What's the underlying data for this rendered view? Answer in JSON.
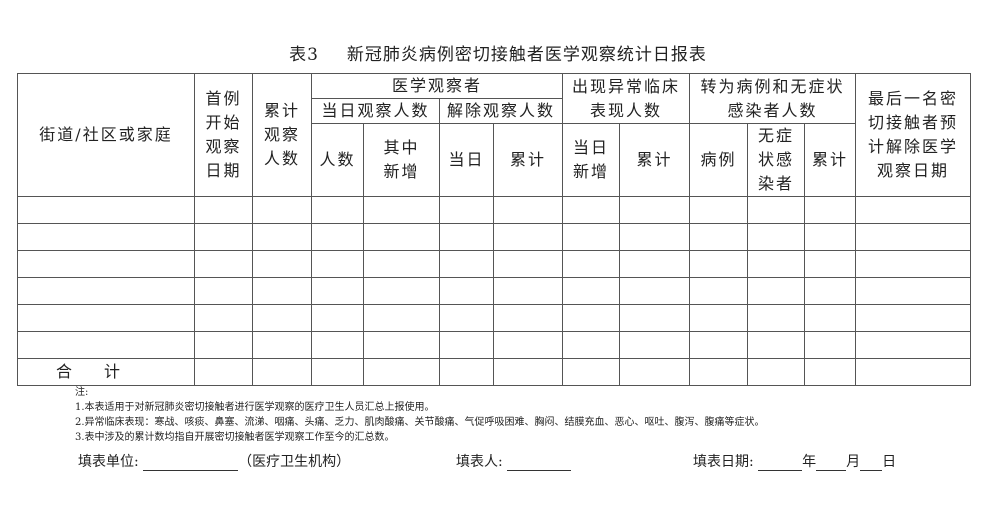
{
  "title": {
    "number": "表3",
    "text": "新冠肺炎病例密切接触者医学观察统计日报表"
  },
  "headers": {
    "street": "街道/社区或家庭",
    "first_date": "首例\n开始\n观察\n日期",
    "cumulative": "累计\n观察\n人数",
    "medical_obs": "医学观察者",
    "today_obs": "当日观察人数",
    "released": "解除观察人数",
    "count": "人数",
    "new_added": "其中\n新增",
    "today": "当日",
    "total1": "累计",
    "abnormal": "出现异常临床\n表现人数",
    "today_new": "当日\n新增",
    "total2": "累计",
    "converted": "转为病例和无症状\n感染者人数",
    "cases": "病例",
    "asymptomatic": "无症\n状感\n染者",
    "total3": "累计",
    "last_release": "最后一名密\n切接触者预\n计解除医学\n观察日期"
  },
  "total_row_label": "合　计",
  "notes": [
    "注:",
    "1.本表适用于对新冠肺炎密切接触者进行医学观察的医疗卫生人员汇总上报使用。",
    "2.异常临床表现：寒战、咳痰、鼻塞、流涕、咽痛、头痛、乏力、肌肉酸痛、关节酸痛、气促呼吸困难、胸闷、结膜充血、恶心、呕吐、腹泻、腹痛等症状。",
    "3.表中涉及的累计数均指自开展密切接触者医学观察工作至今的汇总数。"
  ],
  "footer": {
    "unit_label": "填表单位:",
    "unit_hint": "（医疗卫生机构）",
    "filler_label": "填表人:",
    "date_label": "填表日期:",
    "year": "年",
    "month": "月",
    "day": "日"
  }
}
